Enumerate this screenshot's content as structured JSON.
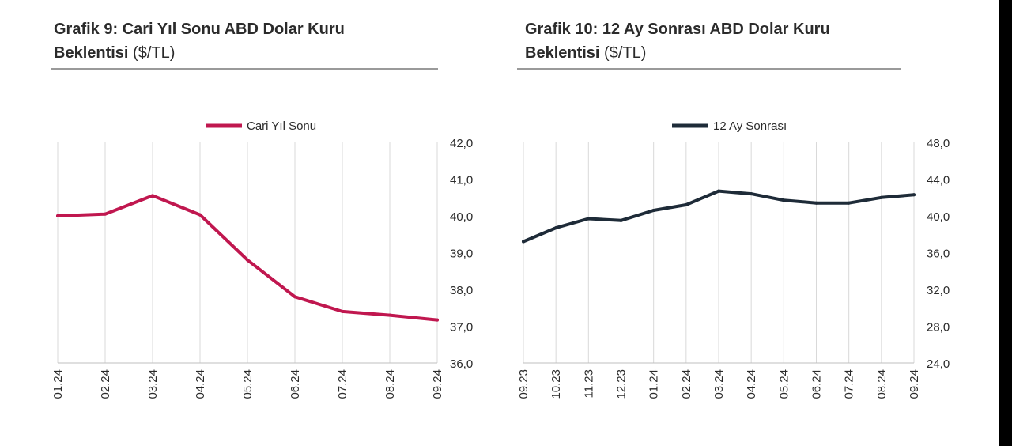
{
  "charts_header": [
    {
      "title_bold": "Grafik 9: Cari Yıl Sonu ABD Dolar Kuru",
      "title_bold2": "Beklentisi",
      "unit": "($/TL)"
    },
    {
      "title_bold": "Grafik 10: 12 Ay Sonrası ABD Dolar Kuru",
      "title_bold2": "Beklentisi",
      "unit": "($/TL)"
    }
  ],
  "chart_data": [
    {
      "type": "line",
      "title": "Grafik 9: Cari Yıl Sonu ABD Dolar Kuru Beklentisi ($/TL)",
      "x": [
        "01.24",
        "02.24",
        "03.24",
        "04.24",
        "05.24",
        "06.24",
        "07.24",
        "08.24",
        "09.24"
      ],
      "series": [
        {
          "name": "Cari Yıl Sonu",
          "values": [
            40.0,
            40.05,
            40.55,
            40.03,
            38.8,
            37.8,
            37.4,
            37.3,
            37.17
          ],
          "color": "#C0174F"
        }
      ],
      "y_ticks": [
        "36,0",
        "37,0",
        "38,0",
        "39,0",
        "40,0",
        "41,0",
        "42,0"
      ],
      "ylim": [
        36,
        42
      ],
      "y_axis_side": "right",
      "grid": "vertical",
      "legend_position": "top"
    },
    {
      "type": "line",
      "title": "Grafik 10: 12 Ay Sonrası ABD Dolar Kuru Beklentisi ($/TL)",
      "x": [
        "09.23",
        "10.23",
        "11.23",
        "12.23",
        "01.24",
        "02.24",
        "03.24",
        "04.24",
        "05.24",
        "06.24",
        "07.24",
        "08.24",
        "09.24"
      ],
      "series": [
        {
          "name": "12 Ay Sonrası",
          "values": [
            37.2,
            38.7,
            39.7,
            39.5,
            40.6,
            41.2,
            42.7,
            42.4,
            41.7,
            41.4,
            41.4,
            42.0,
            42.3
          ],
          "color": "#1E2B38"
        }
      ],
      "y_ticks": [
        "24,0",
        "28,0",
        "32,0",
        "36,0",
        "40,0",
        "44,0",
        "48,0"
      ],
      "ylim": [
        24,
        48
      ],
      "y_axis_side": "right",
      "grid": "vertical",
      "legend_position": "top"
    }
  ]
}
